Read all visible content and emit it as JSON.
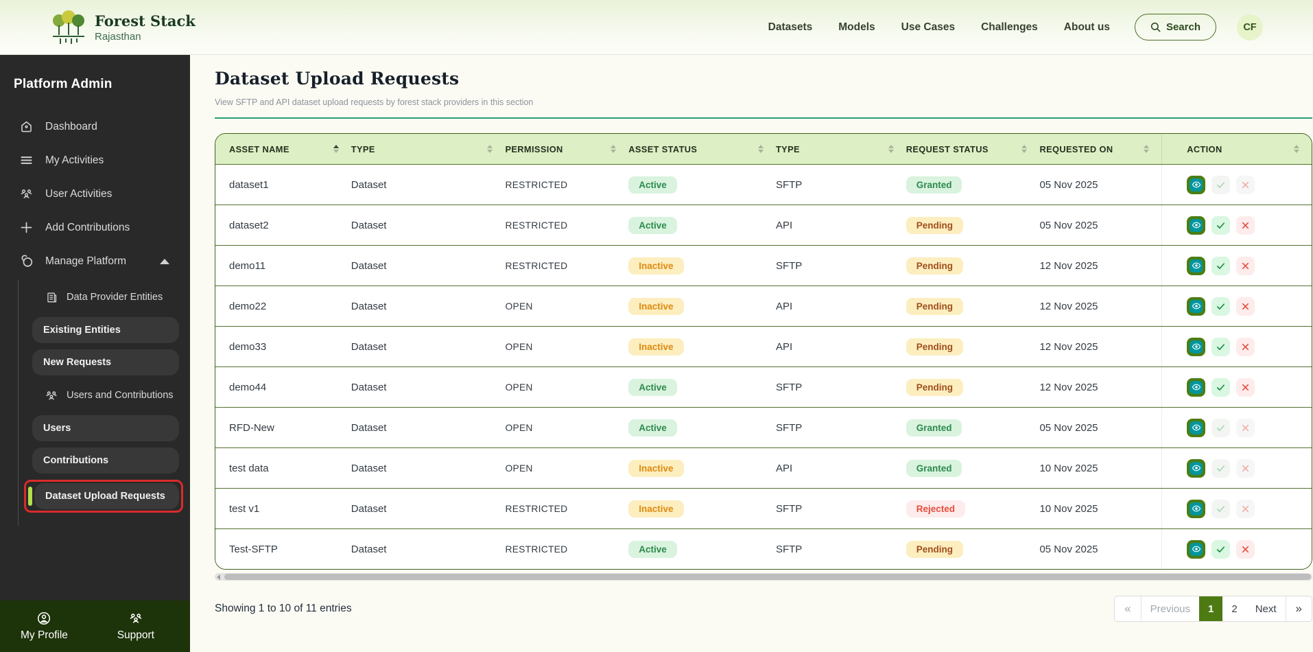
{
  "header": {
    "brand": {
      "title": "Forest Stack",
      "subtitle": "Rajasthan"
    },
    "nav": [
      "Datasets",
      "Models",
      "Use Cases",
      "Challenges",
      "About us"
    ],
    "search_label": "Search",
    "avatar_initials": "CF"
  },
  "sidebar": {
    "title": "Platform Admin",
    "items": [
      {
        "label": "Dashboard",
        "icon": "home"
      },
      {
        "label": "My Activities",
        "icon": "menu"
      },
      {
        "label": "User Activities",
        "icon": "users"
      },
      {
        "label": "Add Contributions",
        "icon": "plus"
      },
      {
        "label": "Manage Platform",
        "icon": "cloud",
        "expanded": true
      }
    ],
    "submenu": [
      {
        "heading": "Data Provider Entities",
        "icon": "entity",
        "items": [
          {
            "label": "Existing Entities"
          },
          {
            "label": "New Requests"
          }
        ]
      },
      {
        "heading": "Users and Contributions",
        "icon": "users",
        "items": [
          {
            "label": "Users"
          },
          {
            "label": "Contributions"
          },
          {
            "label": "Dataset Upload Requests",
            "active": true
          }
        ]
      }
    ],
    "footer": [
      {
        "label": "My Profile",
        "icon": "profile"
      },
      {
        "label": "Support",
        "icon": "users"
      }
    ]
  },
  "page": {
    "title": "Dataset Upload Requests",
    "subtitle": "View SFTP and API dataset upload requests by forest stack providers in this section"
  },
  "table": {
    "columns": [
      {
        "label": "ASSET NAME",
        "sorted": "asc"
      },
      {
        "label": "TYPE"
      },
      {
        "label": "PERMISSION"
      },
      {
        "label": "ASSET STATUS"
      },
      {
        "label": "TYPE"
      },
      {
        "label": "REQUEST STATUS"
      },
      {
        "label": "REQUESTED ON"
      },
      {
        "label": "ACTION"
      }
    ],
    "rows": [
      {
        "asset_name": "dataset1",
        "type": "Dataset",
        "permission": "RESTRICTED",
        "asset_status": "Active",
        "upload_type": "SFTP",
        "request_status": "Granted",
        "requested_on": "05 Nov 2025",
        "actions_enabled": false
      },
      {
        "asset_name": "dataset2",
        "type": "Dataset",
        "permission": "RESTRICTED",
        "asset_status": "Active",
        "upload_type": "API",
        "request_status": "Pending",
        "requested_on": "05 Nov 2025",
        "actions_enabled": true
      },
      {
        "asset_name": "demo11",
        "type": "Dataset",
        "permission": "RESTRICTED",
        "asset_status": "Inactive",
        "upload_type": "SFTP",
        "request_status": "Pending",
        "requested_on": "12 Nov 2025",
        "actions_enabled": true
      },
      {
        "asset_name": "demo22",
        "type": "Dataset",
        "permission": "OPEN",
        "asset_status": "Inactive",
        "upload_type": "API",
        "request_status": "Pending",
        "requested_on": "12 Nov 2025",
        "actions_enabled": true
      },
      {
        "asset_name": "demo33",
        "type": "Dataset",
        "permission": "OPEN",
        "asset_status": "Inactive",
        "upload_type": "API",
        "request_status": "Pending",
        "requested_on": "12 Nov 2025",
        "actions_enabled": true
      },
      {
        "asset_name": "demo44",
        "type": "Dataset",
        "permission": "OPEN",
        "asset_status": "Active",
        "upload_type": "SFTP",
        "request_status": "Pending",
        "requested_on": "12 Nov 2025",
        "actions_enabled": true
      },
      {
        "asset_name": "RFD-New",
        "type": "Dataset",
        "permission": "OPEN",
        "asset_status": "Active",
        "upload_type": "SFTP",
        "request_status": "Granted",
        "requested_on": "05 Nov 2025",
        "actions_enabled": false
      },
      {
        "asset_name": "test data",
        "type": "Dataset",
        "permission": "OPEN",
        "asset_status": "Inactive",
        "upload_type": "API",
        "request_status": "Granted",
        "requested_on": "10 Nov 2025",
        "actions_enabled": false
      },
      {
        "asset_name": "test v1",
        "type": "Dataset",
        "permission": "RESTRICTED",
        "asset_status": "Inactive",
        "upload_type": "SFTP",
        "request_status": "Rejected",
        "requested_on": "10 Nov 2025",
        "actions_enabled": false
      },
      {
        "asset_name": "Test-SFTP",
        "type": "Dataset",
        "permission": "RESTRICTED",
        "asset_status": "Active",
        "upload_type": "SFTP",
        "request_status": "Pending",
        "requested_on": "05 Nov 2025",
        "actions_enabled": true
      }
    ]
  },
  "pagination": {
    "summary": "Showing 1 to 10 of 11 entries",
    "first": "«",
    "previous": "Previous",
    "pages": [
      "1",
      "2"
    ],
    "active_page": "1",
    "next": "Next",
    "last": "»"
  },
  "colors": {
    "accent_green": "#4e7a14",
    "sidebar_bg": "#292929",
    "sidebar_footer_bg": "#1d3309",
    "table_header_bg": "#ddefc4",
    "divider_teal": "#2a9d72",
    "active_item_border": "#d92b2b",
    "active_item_accent": "#b4df4a",
    "status_active_bg": "#d9f3de",
    "status_active_text": "#2c8a4c",
    "status_inactive_bg": "#fceebf",
    "status_inactive_text": "#df8a10",
    "status_pending_bg": "#fceebf",
    "status_pending_text": "#a14e1d",
    "status_granted_bg": "#d9f3de",
    "status_granted_text": "#2c8a4c",
    "status_rejected_bg": "#fdecec",
    "status_rejected_text": "#e74c3c",
    "view_button_bg": "#4c7d14",
    "view_button_inner": "#00969e"
  }
}
